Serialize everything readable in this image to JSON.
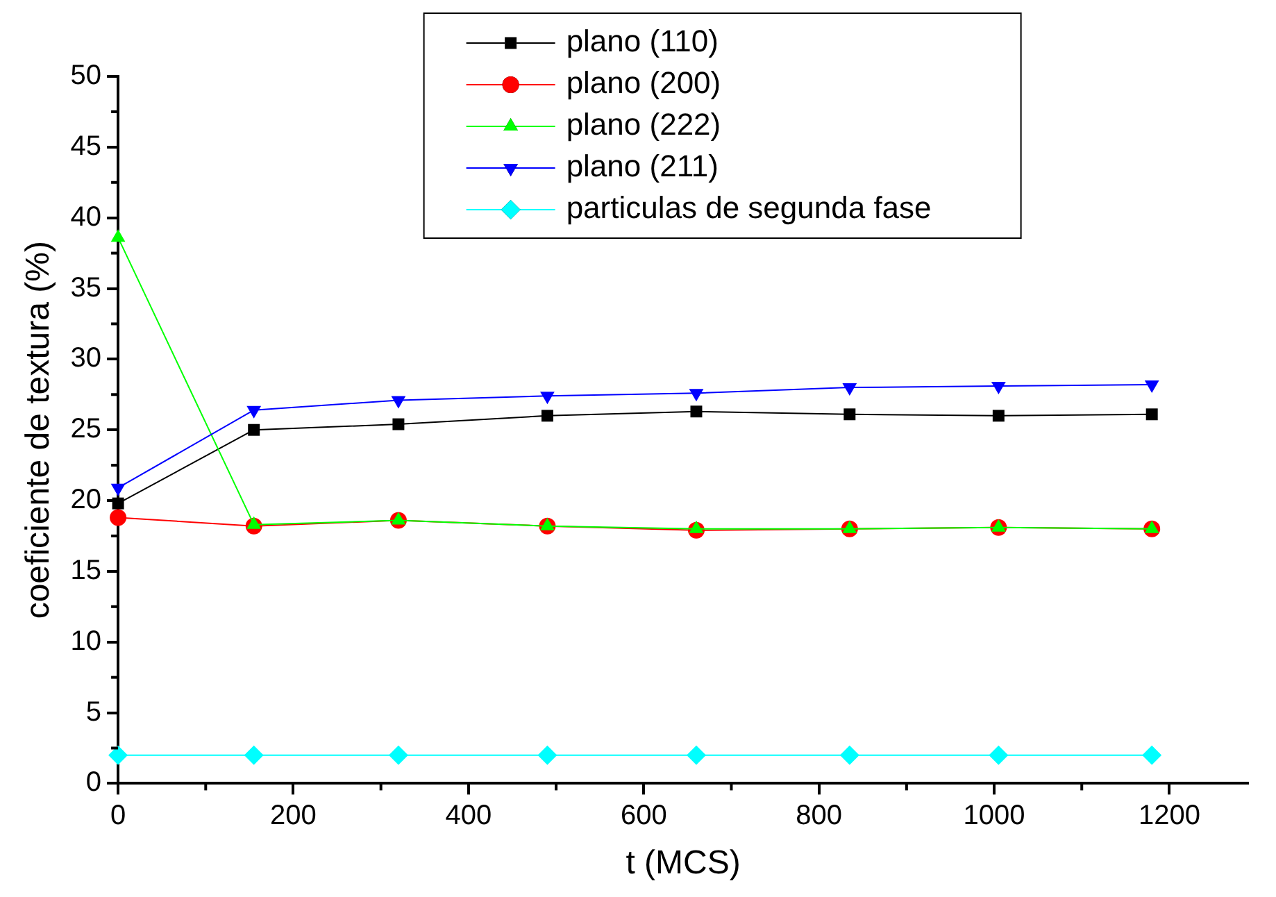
{
  "chart_data": {
    "type": "line",
    "xlabel": "t (MCS)",
    "ylabel": "coeficiente de textura (%)",
    "x": [
      0,
      155,
      320,
      490,
      660,
      835,
      1005,
      1180
    ],
    "series": [
      {
        "name": "plano (110)",
        "color": "#000000",
        "marker": "square",
        "values": [
          19.8,
          25.0,
          25.4,
          26.0,
          26.3,
          26.1,
          26.0,
          26.1
        ]
      },
      {
        "name": "plano (200)",
        "color": "#ff0000",
        "marker": "circle",
        "values": [
          18.8,
          18.2,
          18.6,
          18.2,
          17.9,
          18.0,
          18.1,
          18.0
        ]
      },
      {
        "name": "plano (222)",
        "color": "#00ff00",
        "marker": "triangle",
        "values": [
          38.6,
          18.3,
          18.6,
          18.2,
          18.0,
          18.0,
          18.1,
          18.0
        ]
      },
      {
        "name": "plano (211)",
        "color": "#0000ff",
        "marker": "triangle-down",
        "values": [
          20.9,
          26.4,
          27.1,
          27.4,
          27.6,
          28.0,
          28.1,
          28.2
        ]
      },
      {
        "name": "particulas de segunda fase",
        "color": "#00ffff",
        "marker": "diamond",
        "values": [
          2,
          2,
          2,
          2,
          2,
          2,
          2,
          2
        ]
      }
    ],
    "xlim": [
      0,
      1290
    ],
    "xticks": [
      0,
      200,
      400,
      600,
      800,
      1000,
      1200
    ],
    "ylim": [
      0,
      50
    ],
    "yticks": [
      0,
      5,
      10,
      15,
      20,
      25,
      30,
      35,
      40,
      45,
      50
    ],
    "grid": false,
    "legend": "top",
    "line_style": "solid"
  }
}
